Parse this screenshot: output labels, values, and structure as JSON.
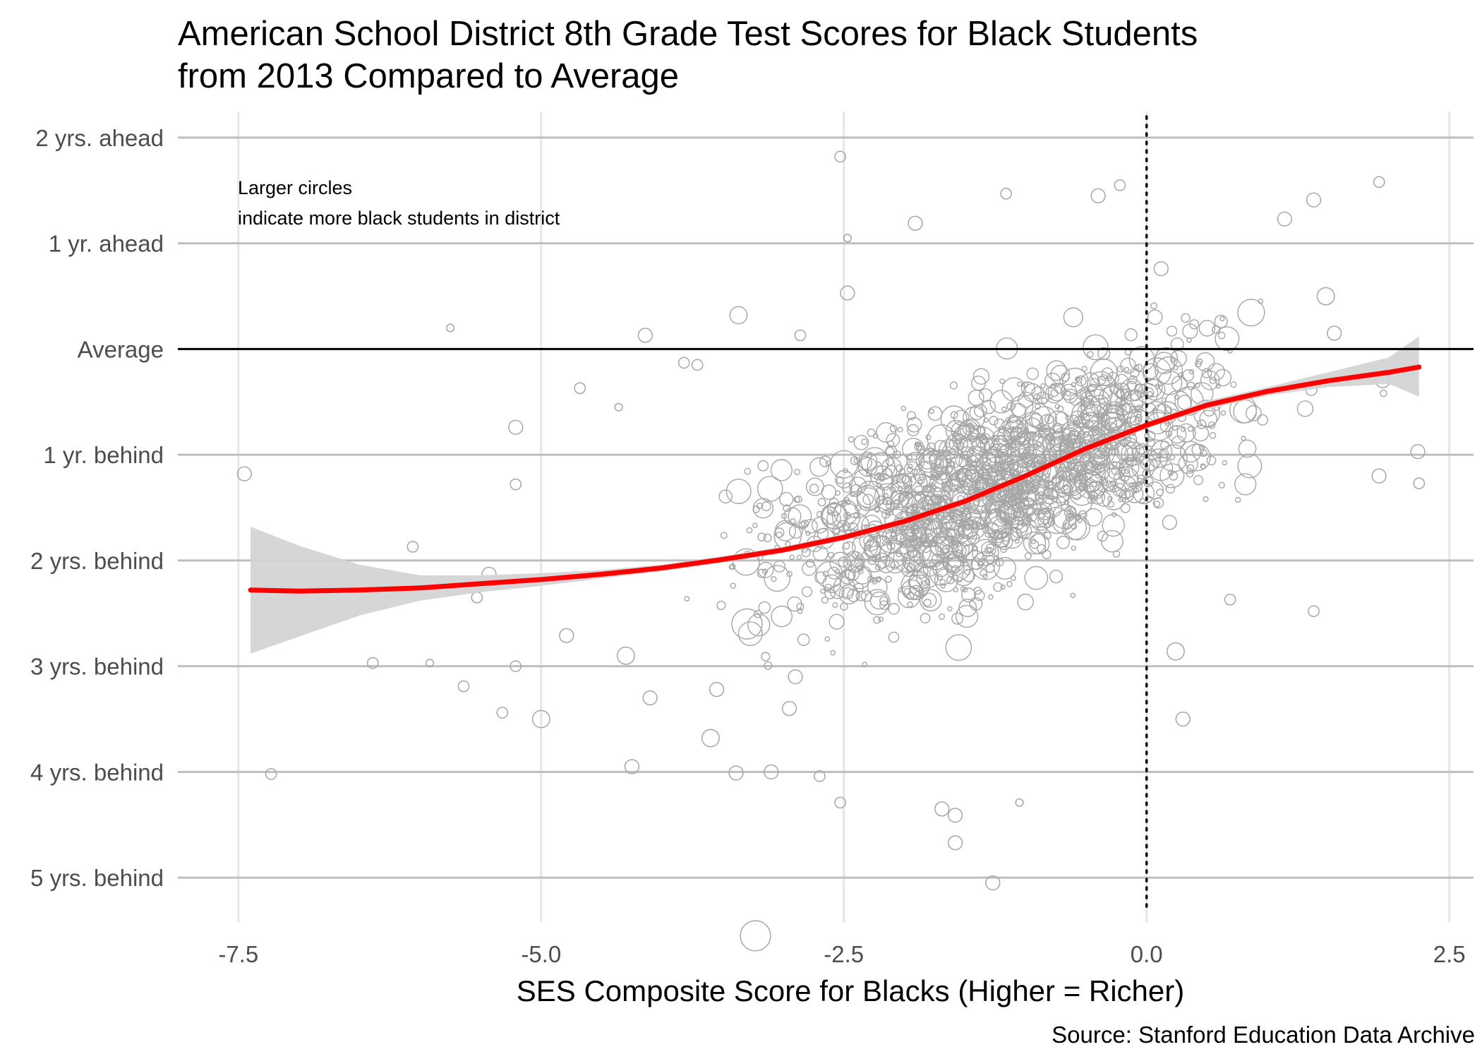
{
  "title_line1": "American School District 8th Grade Test Scores for Black Students",
  "title_line2": "from 2013 Compared to Average",
  "annotation": [
    "Larger circles",
    "indicate more black students in district"
  ],
  "caption": "Source: Stanford Education Data Archive",
  "colors": {
    "points": "#a6a6a6",
    "smooth": "#ff0000",
    "ribbon": "#d3d3d3",
    "gridMajor": "#bebebe",
    "gridMinor": "#e6e6e6",
    "reference": "#000000"
  },
  "chart_data": {
    "type": "scatter",
    "title": "American School District 8th Grade Test Scores for Black Students from 2013 Compared to Average",
    "xlabel": "SES Composite Score for Blacks (Higher = Richer)",
    "ylabel": "",
    "xlim": [
      -8.0,
      2.7
    ],
    "ylim": [
      -5.5,
      2.3
    ],
    "x_ticks": [
      {
        "value": -7.5,
        "label": "-7.5"
      },
      {
        "value": -5.0,
        "label": "-5.0"
      },
      {
        "value": -2.5,
        "label": "-2.5"
      },
      {
        "value": 0.0,
        "label": "0.0"
      },
      {
        "value": 2.5,
        "label": "2.5"
      }
    ],
    "y_ticks": [
      {
        "value": 2,
        "label": "2 yrs. ahead"
      },
      {
        "value": 1,
        "label": "1 yr. ahead"
      },
      {
        "value": 0,
        "label": "Average"
      },
      {
        "value": -1,
        "label": "1 yr. behind"
      },
      {
        "value": -2,
        "label": "2 yrs. behind"
      },
      {
        "value": -3,
        "label": "3 yrs. behind"
      },
      {
        "value": -4,
        "label": "4 yrs. behind"
      },
      {
        "value": -5,
        "label": "5 yrs. behind"
      }
    ],
    "reference_lines": {
      "horizontal_solid": 0,
      "vertical_dotted": 0
    },
    "grid": true,
    "smooth": {
      "x": [
        -7.4,
        -7.0,
        -6.5,
        -6.0,
        -5.5,
        -5.0,
        -4.5,
        -4.0,
        -3.5,
        -3.0,
        -2.5,
        -2.0,
        -1.5,
        -1.0,
        -0.5,
        0.0,
        0.5,
        1.0,
        1.5,
        2.0,
        2.25
      ],
      "y": [
        -2.28,
        -2.29,
        -2.28,
        -2.26,
        -2.22,
        -2.18,
        -2.13,
        -2.07,
        -1.99,
        -1.9,
        -1.78,
        -1.63,
        -1.44,
        -1.2,
        -0.94,
        -0.72,
        -0.53,
        -0.4,
        -0.3,
        -0.22,
        -0.17
      ],
      "lower": [
        -2.88,
        -2.72,
        -2.52,
        -2.38,
        -2.3,
        -2.24,
        -2.17,
        -2.1,
        -2.02,
        -1.93,
        -1.81,
        -1.66,
        -1.47,
        -1.23,
        -0.97,
        -0.75,
        -0.57,
        -0.44,
        -0.36,
        -0.33,
        -0.45
      ],
      "upper": [
        -1.68,
        -1.86,
        -2.04,
        -2.14,
        -2.14,
        -2.12,
        -2.09,
        -2.04,
        -1.96,
        -1.87,
        -1.75,
        -1.6,
        -1.41,
        -1.17,
        -0.91,
        -0.69,
        -0.49,
        -0.36,
        -0.22,
        -0.08,
        0.12
      ]
    },
    "points": [
      {
        "x": -7.45,
        "y": -1.18,
        "size": 3
      },
      {
        "x": -7.23,
        "y": -4.02,
        "size": 2
      },
      {
        "x": -6.06,
        "y": -1.87,
        "size": 2
      },
      {
        "x": -6.39,
        "y": -2.97,
        "size": 2
      },
      {
        "x": -5.92,
        "y": -2.97,
        "size": 1
      },
      {
        "x": -5.75,
        "y": 0.2,
        "size": 1
      },
      {
        "x": -5.64,
        "y": -3.19,
        "size": 2
      },
      {
        "x": -5.53,
        "y": -2.35,
        "size": 2
      },
      {
        "x": -5.43,
        "y": -2.13,
        "size": 3
      },
      {
        "x": -5.21,
        "y": -0.74,
        "size": 3
      },
      {
        "x": -5.21,
        "y": -1.28,
        "size": 2
      },
      {
        "x": -5.21,
        "y": -3.0,
        "size": 2
      },
      {
        "x": -5.32,
        "y": -3.44,
        "size": 2
      },
      {
        "x": -5.0,
        "y": -3.5,
        "size": 4
      },
      {
        "x": -4.79,
        "y": -2.71,
        "size": 3
      },
      {
        "x": -4.68,
        "y": -0.37,
        "size": 2
      },
      {
        "x": -4.36,
        "y": -0.55,
        "size": 1
      },
      {
        "x": -4.25,
        "y": -3.95,
        "size": 3
      },
      {
        "x": -4.14,
        "y": 0.13,
        "size": 3
      },
      {
        "x": -3.82,
        "y": -0.13,
        "size": 2
      },
      {
        "x": -3.71,
        "y": -0.15,
        "size": 2
      },
      {
        "x": -3.6,
        "y": -3.68,
        "size": 4
      },
      {
        "x": -3.39,
        "y": -4.01,
        "size": 3
      },
      {
        "x": -3.23,
        "y": -5.55,
        "size": 8
      },
      {
        "x": -3.1,
        "y": -4.0,
        "size": 3
      },
      {
        "x": -2.86,
        "y": 0.13,
        "size": 2
      },
      {
        "x": -2.7,
        "y": -4.04,
        "size": 2
      },
      {
        "x": -2.53,
        "y": -4.29,
        "size": 2
      },
      {
        "x": -2.53,
        "y": -2.02,
        "size": 5
      },
      {
        "x": -2.53,
        "y": 1.82,
        "size": 2
      },
      {
        "x": -2.47,
        "y": 1.05,
        "size": 1
      },
      {
        "x": -2.47,
        "y": 0.53,
        "size": 3
      },
      {
        "x": -1.91,
        "y": 1.19,
        "size": 3
      },
      {
        "x": -1.69,
        "y": -4.35,
        "size": 3
      },
      {
        "x": -1.58,
        "y": -4.41,
        "size": 3
      },
      {
        "x": -1.58,
        "y": -4.67,
        "size": 3
      },
      {
        "x": -1.27,
        "y": -5.05,
        "size": 3
      },
      {
        "x": -1.16,
        "y": 1.47,
        "size": 2
      },
      {
        "x": -1.05,
        "y": -4.29,
        "size": 1
      },
      {
        "x": -0.4,
        "y": 1.45,
        "size": 3
      },
      {
        "x": -0.22,
        "y": 1.55,
        "size": 2
      },
      {
        "x": 0.19,
        "y": -1.64,
        "size": 3
      },
      {
        "x": 0.24,
        "y": -2.86,
        "size": 4
      },
      {
        "x": 0.3,
        "y": -3.5,
        "size": 3
      },
      {
        "x": 0.69,
        "y": -2.37,
        "size": 2
      },
      {
        "x": 1.14,
        "y": 1.23,
        "size": 3
      },
      {
        "x": 1.38,
        "y": -2.48,
        "size": 2
      },
      {
        "x": 1.38,
        "y": 1.41,
        "size": 3
      },
      {
        "x": 1.92,
        "y": 1.58,
        "size": 2
      },
      {
        "x": 1.95,
        "y": -0.3,
        "size": 3
      },
      {
        "x": 2.25,
        "y": -1.27,
        "size": 2
      },
      {
        "x": 2.24,
        "y": -0.97,
        "size": 3
      },
      {
        "x": 1.92,
        "y": -1.2,
        "size": 3
      },
      {
        "x": 1.55,
        "y": 0.15,
        "size": 3
      },
      {
        "x": 1.48,
        "y": 0.5,
        "size": 4
      },
      {
        "x": 0.12,
        "y": 0.76,
        "size": 3
      },
      {
        "x": -3.37,
        "y": 0.32,
        "size": 4
      },
      {
        "x": -3.55,
        "y": -3.22,
        "size": 3
      },
      {
        "x": -3.3,
        "y": -2.6,
        "size": 8
      },
      {
        "x": -2.9,
        "y": -3.1,
        "size": 3
      },
      {
        "x": -2.95,
        "y": -3.4,
        "size": 3
      },
      {
        "x": -4.3,
        "y": -2.9,
        "size": 4
      },
      {
        "x": -4.1,
        "y": -3.3,
        "size": 3
      }
    ]
  }
}
